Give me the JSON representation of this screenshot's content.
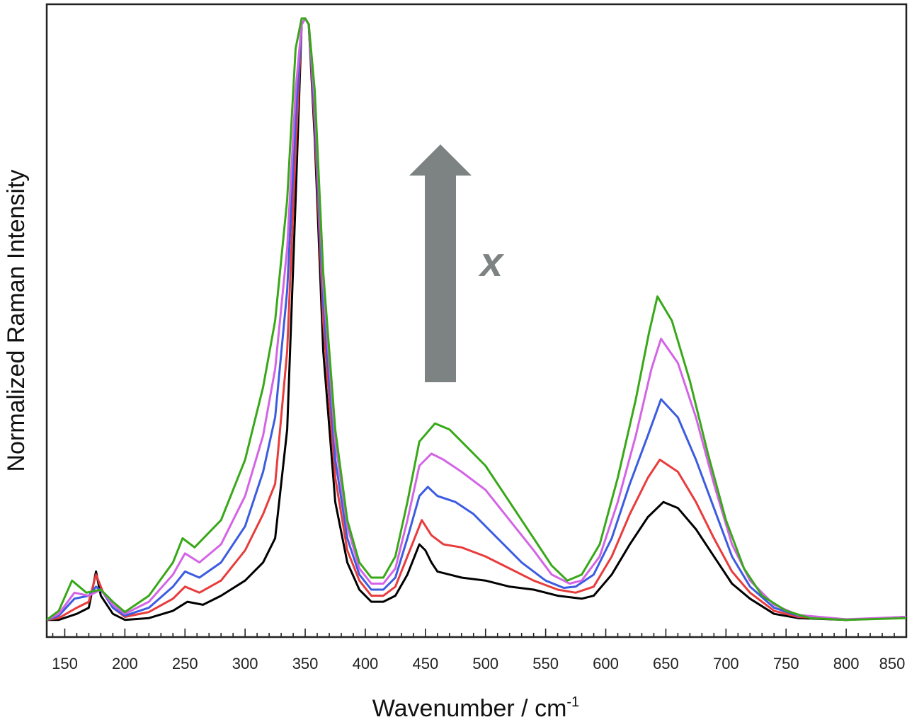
{
  "chart_data": {
    "type": "line",
    "xlabel": "Wavenumber / cm",
    "xlabel_superscript": "-1",
    "ylabel": "Normalized Raman Intensity",
    "xlim": [
      135,
      850
    ],
    "ylim": [
      0,
      1
    ],
    "x_ticks": [
      150,
      200,
      250,
      300,
      350,
      400,
      450,
      500,
      550,
      600,
      650,
      700,
      750,
      800,
      850
    ],
    "y_ticks_shown": false,
    "grid": false,
    "legend": "none",
    "annotation": {
      "text": "x",
      "arrow_direction": "up",
      "color": "#7d8382"
    },
    "series": [
      {
        "color": "#000000",
        "points": [
          [
            135,
            0.005
          ],
          [
            145,
            0.005
          ],
          [
            160,
            0.015
          ],
          [
            170,
            0.025
          ],
          [
            176,
            0.085
          ],
          [
            180,
            0.045
          ],
          [
            190,
            0.015
          ],
          [
            200,
            0.005
          ],
          [
            220,
            0.008
          ],
          [
            240,
            0.02
          ],
          [
            252,
            0.035
          ],
          [
            265,
            0.03
          ],
          [
            280,
            0.045
          ],
          [
            300,
            0.07
          ],
          [
            315,
            0.1
          ],
          [
            325,
            0.14
          ],
          [
            335,
            0.32
          ],
          [
            342,
            0.7
          ],
          [
            347,
            0.99
          ],
          [
            350,
            1.0
          ],
          [
            353,
            0.99
          ],
          [
            358,
            0.8
          ],
          [
            365,
            0.45
          ],
          [
            375,
            0.2
          ],
          [
            385,
            0.1
          ],
          [
            395,
            0.055
          ],
          [
            405,
            0.035
          ],
          [
            415,
            0.035
          ],
          [
            425,
            0.045
          ],
          [
            435,
            0.08
          ],
          [
            445,
            0.13
          ],
          [
            450,
            0.12
          ],
          [
            455,
            0.1
          ],
          [
            460,
            0.085
          ],
          [
            480,
            0.075
          ],
          [
            500,
            0.07
          ],
          [
            520,
            0.06
          ],
          [
            540,
            0.055
          ],
          [
            560,
            0.045
          ],
          [
            580,
            0.04
          ],
          [
            590,
            0.045
          ],
          [
            605,
            0.08
          ],
          [
            620,
            0.13
          ],
          [
            635,
            0.175
          ],
          [
            648,
            0.2
          ],
          [
            660,
            0.19
          ],
          [
            675,
            0.155
          ],
          [
            690,
            0.11
          ],
          [
            705,
            0.065
          ],
          [
            720,
            0.04
          ],
          [
            740,
            0.015
          ],
          [
            760,
            0.008
          ],
          [
            800,
            0.005
          ],
          [
            850,
            0.01
          ]
        ]
      },
      {
        "color": "#e83c3c",
        "points": [
          [
            135,
            0.005
          ],
          [
            145,
            0.008
          ],
          [
            160,
            0.025
          ],
          [
            170,
            0.035
          ],
          [
            176,
            0.08
          ],
          [
            182,
            0.05
          ],
          [
            190,
            0.025
          ],
          [
            200,
            0.01
          ],
          [
            220,
            0.018
          ],
          [
            240,
            0.04
          ],
          [
            250,
            0.06
          ],
          [
            262,
            0.05
          ],
          [
            280,
            0.07
          ],
          [
            300,
            0.12
          ],
          [
            315,
            0.18
          ],
          [
            325,
            0.23
          ],
          [
            335,
            0.45
          ],
          [
            342,
            0.78
          ],
          [
            347,
            0.99
          ],
          [
            350,
            1.0
          ],
          [
            353,
            0.99
          ],
          [
            358,
            0.82
          ],
          [
            365,
            0.5
          ],
          [
            375,
            0.24
          ],
          [
            385,
            0.12
          ],
          [
            395,
            0.07
          ],
          [
            405,
            0.045
          ],
          [
            415,
            0.045
          ],
          [
            425,
            0.06
          ],
          [
            435,
            0.11
          ],
          [
            447,
            0.17
          ],
          [
            455,
            0.145
          ],
          [
            465,
            0.13
          ],
          [
            480,
            0.125
          ],
          [
            500,
            0.11
          ],
          [
            520,
            0.09
          ],
          [
            540,
            0.07
          ],
          [
            560,
            0.055
          ],
          [
            575,
            0.05
          ],
          [
            590,
            0.06
          ],
          [
            605,
            0.11
          ],
          [
            620,
            0.18
          ],
          [
            635,
            0.24
          ],
          [
            645,
            0.27
          ],
          [
            660,
            0.25
          ],
          [
            675,
            0.2
          ],
          [
            690,
            0.14
          ],
          [
            705,
            0.085
          ],
          [
            720,
            0.05
          ],
          [
            740,
            0.02
          ],
          [
            760,
            0.01
          ],
          [
            800,
            0.005
          ],
          [
            850,
            0.01
          ]
        ]
      },
      {
        "color": "#3c5ce0",
        "points": [
          [
            135,
            0.005
          ],
          [
            145,
            0.012
          ],
          [
            158,
            0.04
          ],
          [
            170,
            0.045
          ],
          [
            176,
            0.06
          ],
          [
            182,
            0.05
          ],
          [
            190,
            0.025
          ],
          [
            200,
            0.012
          ],
          [
            220,
            0.025
          ],
          [
            240,
            0.06
          ],
          [
            250,
            0.085
          ],
          [
            262,
            0.075
          ],
          [
            280,
            0.1
          ],
          [
            300,
            0.16
          ],
          [
            315,
            0.25
          ],
          [
            325,
            0.34
          ],
          [
            335,
            0.55
          ],
          [
            342,
            0.83
          ],
          [
            347,
            0.99
          ],
          [
            350,
            1.0
          ],
          [
            353,
            0.99
          ],
          [
            358,
            0.84
          ],
          [
            365,
            0.53
          ],
          [
            375,
            0.27
          ],
          [
            385,
            0.14
          ],
          [
            395,
            0.08
          ],
          [
            405,
            0.055
          ],
          [
            415,
            0.055
          ],
          [
            425,
            0.075
          ],
          [
            435,
            0.14
          ],
          [
            445,
            0.21
          ],
          [
            452,
            0.225
          ],
          [
            460,
            0.21
          ],
          [
            475,
            0.2
          ],
          [
            490,
            0.18
          ],
          [
            510,
            0.14
          ],
          [
            530,
            0.1
          ],
          [
            550,
            0.07
          ],
          [
            565,
            0.058
          ],
          [
            575,
            0.06
          ],
          [
            590,
            0.08
          ],
          [
            605,
            0.14
          ],
          [
            620,
            0.23
          ],
          [
            635,
            0.31
          ],
          [
            646,
            0.37
          ],
          [
            660,
            0.34
          ],
          [
            675,
            0.27
          ],
          [
            690,
            0.19
          ],
          [
            705,
            0.11
          ],
          [
            720,
            0.06
          ],
          [
            740,
            0.025
          ],
          [
            760,
            0.012
          ],
          [
            800,
            0.005
          ],
          [
            850,
            0.01
          ]
        ]
      },
      {
        "color": "#d464e6",
        "points": [
          [
            135,
            0.005
          ],
          [
            145,
            0.015
          ],
          [
            158,
            0.05
          ],
          [
            170,
            0.045
          ],
          [
            180,
            0.055
          ],
          [
            190,
            0.03
          ],
          [
            200,
            0.015
          ],
          [
            220,
            0.035
          ],
          [
            240,
            0.08
          ],
          [
            250,
            0.115
          ],
          [
            262,
            0.1
          ],
          [
            280,
            0.13
          ],
          [
            300,
            0.21
          ],
          [
            315,
            0.31
          ],
          [
            325,
            0.42
          ],
          [
            335,
            0.62
          ],
          [
            342,
            0.88
          ],
          [
            347,
            0.99
          ],
          [
            350,
            1.0
          ],
          [
            353,
            0.99
          ],
          [
            358,
            0.86
          ],
          [
            365,
            0.56
          ],
          [
            375,
            0.3
          ],
          [
            385,
            0.16
          ],
          [
            395,
            0.09
          ],
          [
            405,
            0.065
          ],
          [
            415,
            0.065
          ],
          [
            425,
            0.09
          ],
          [
            435,
            0.17
          ],
          [
            445,
            0.26
          ],
          [
            455,
            0.28
          ],
          [
            465,
            0.27
          ],
          [
            480,
            0.25
          ],
          [
            500,
            0.22
          ],
          [
            520,
            0.17
          ],
          [
            540,
            0.12
          ],
          [
            555,
            0.08
          ],
          [
            570,
            0.065
          ],
          [
            580,
            0.07
          ],
          [
            595,
            0.11
          ],
          [
            610,
            0.2
          ],
          [
            625,
            0.31
          ],
          [
            638,
            0.42
          ],
          [
            646,
            0.47
          ],
          [
            660,
            0.43
          ],
          [
            675,
            0.34
          ],
          [
            690,
            0.23
          ],
          [
            705,
            0.13
          ],
          [
            720,
            0.07
          ],
          [
            740,
            0.03
          ],
          [
            760,
            0.013
          ],
          [
            800,
            0.006
          ],
          [
            850,
            0.01
          ]
        ]
      },
      {
        "color": "#38a818",
        "points": [
          [
            135,
            0.005
          ],
          [
            145,
            0.02
          ],
          [
            156,
            0.07
          ],
          [
            168,
            0.05
          ],
          [
            180,
            0.055
          ],
          [
            190,
            0.035
          ],
          [
            200,
            0.018
          ],
          [
            220,
            0.045
          ],
          [
            240,
            0.1
          ],
          [
            248,
            0.14
          ],
          [
            258,
            0.125
          ],
          [
            280,
            0.17
          ],
          [
            300,
            0.27
          ],
          [
            315,
            0.39
          ],
          [
            325,
            0.5
          ],
          [
            335,
            0.7
          ],
          [
            342,
            0.95
          ],
          [
            347,
            1.0
          ],
          [
            350,
            1.0
          ],
          [
            353,
            0.99
          ],
          [
            358,
            0.88
          ],
          [
            365,
            0.58
          ],
          [
            375,
            0.32
          ],
          [
            385,
            0.17
          ],
          [
            395,
            0.1
          ],
          [
            405,
            0.075
          ],
          [
            415,
            0.075
          ],
          [
            425,
            0.11
          ],
          [
            435,
            0.2
          ],
          [
            445,
            0.3
          ],
          [
            458,
            0.33
          ],
          [
            470,
            0.32
          ],
          [
            485,
            0.29
          ],
          [
            500,
            0.26
          ],
          [
            520,
            0.2
          ],
          [
            540,
            0.14
          ],
          [
            555,
            0.095
          ],
          [
            568,
            0.07
          ],
          [
            580,
            0.08
          ],
          [
            595,
            0.13
          ],
          [
            610,
            0.24
          ],
          [
            625,
            0.37
          ],
          [
            636,
            0.48
          ],
          [
            643,
            0.54
          ],
          [
            655,
            0.5
          ],
          [
            670,
            0.4
          ],
          [
            685,
            0.28
          ],
          [
            700,
            0.17
          ],
          [
            715,
            0.09
          ],
          [
            730,
            0.045
          ],
          [
            750,
            0.02
          ],
          [
            770,
            0.008
          ],
          [
            800,
            0.005
          ],
          [
            850,
            0.008
          ]
        ]
      }
    ]
  }
}
